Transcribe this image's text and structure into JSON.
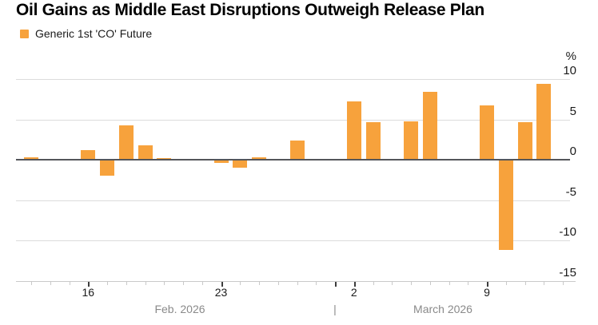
{
  "title": "Oil Gains as Middle East Disruptions Outweigh Release Plan",
  "legend": {
    "label": "Generic 1st 'CO' Future"
  },
  "colors": {
    "bar": "#F7A23C",
    "grid": "#DCDCDC",
    "zero_line": "#54565A",
    "axis_line": "#C9C9C9",
    "tick_minor": "#C9C9C9",
    "tick_major": "#3C3C3C",
    "label_dark": "#1A1A1A",
    "label_gray": "#8A8A8A"
  },
  "y_axis": {
    "unit": "%",
    "ticks": [
      10,
      5,
      0,
      -5,
      -10,
      -15
    ]
  },
  "x_axis": {
    "day_labels": [
      {
        "text": "16",
        "day": 3
      },
      {
        "text": "23",
        "day": 10
      },
      {
        "text": "2",
        "day": 17
      },
      {
        "text": "9",
        "day": 24
      }
    ],
    "month_labels": [
      {
        "text": "Feb. 2026",
        "x": 225
      },
      {
        "text": "March 2026",
        "x": 554
      }
    ],
    "month_divider": "|",
    "month_divider_day": 16
  },
  "chart_data": {
    "type": "bar",
    "title": "Oil Gains as Middle East Disruptions Outweigh Release Plan",
    "series_name": "Generic 1st 'CO' Future",
    "unit": "%",
    "ylim": [
      -15,
      10
    ],
    "grid": true,
    "legend_position": "top-left",
    "points": [
      {
        "date": "Feb 13",
        "day": 0,
        "value": 0.3
      },
      {
        "date": "Feb 16",
        "day": 3,
        "value": 1.2
      },
      {
        "date": "Feb 17",
        "day": 4,
        "value": -2.0
      },
      {
        "date": "Feb 18",
        "day": 5,
        "value": 4.3
      },
      {
        "date": "Feb 19",
        "day": 6,
        "value": 1.8
      },
      {
        "date": "Feb 20",
        "day": 7,
        "value": 0.2
      },
      {
        "date": "Feb 23",
        "day": 10,
        "value": -0.4
      },
      {
        "date": "Feb 24",
        "day": 11,
        "value": -1.0
      },
      {
        "date": "Feb 25",
        "day": 12,
        "value": 0.25
      },
      {
        "date": "Feb 26",
        "day": 13,
        "value": 0.1
      },
      {
        "date": "Feb 27",
        "day": 14,
        "value": 2.4
      },
      {
        "date": "Mar 2",
        "day": 17,
        "value": 7.2
      },
      {
        "date": "Mar 3",
        "day": 18,
        "value": 4.7
      },
      {
        "date": "Mar 4",
        "day": 19,
        "value": 0.0
      },
      {
        "date": "Mar 5",
        "day": 20,
        "value": 4.8
      },
      {
        "date": "Mar 6",
        "day": 21,
        "value": 8.4
      },
      {
        "date": "Mar 9",
        "day": 24,
        "value": 6.7
      },
      {
        "date": "Mar 10",
        "day": 25,
        "value": -11.2
      },
      {
        "date": "Mar 11",
        "day": 26,
        "value": 4.7
      },
      {
        "date": "Mar 12",
        "day": 27,
        "value": 9.4
      }
    ]
  }
}
